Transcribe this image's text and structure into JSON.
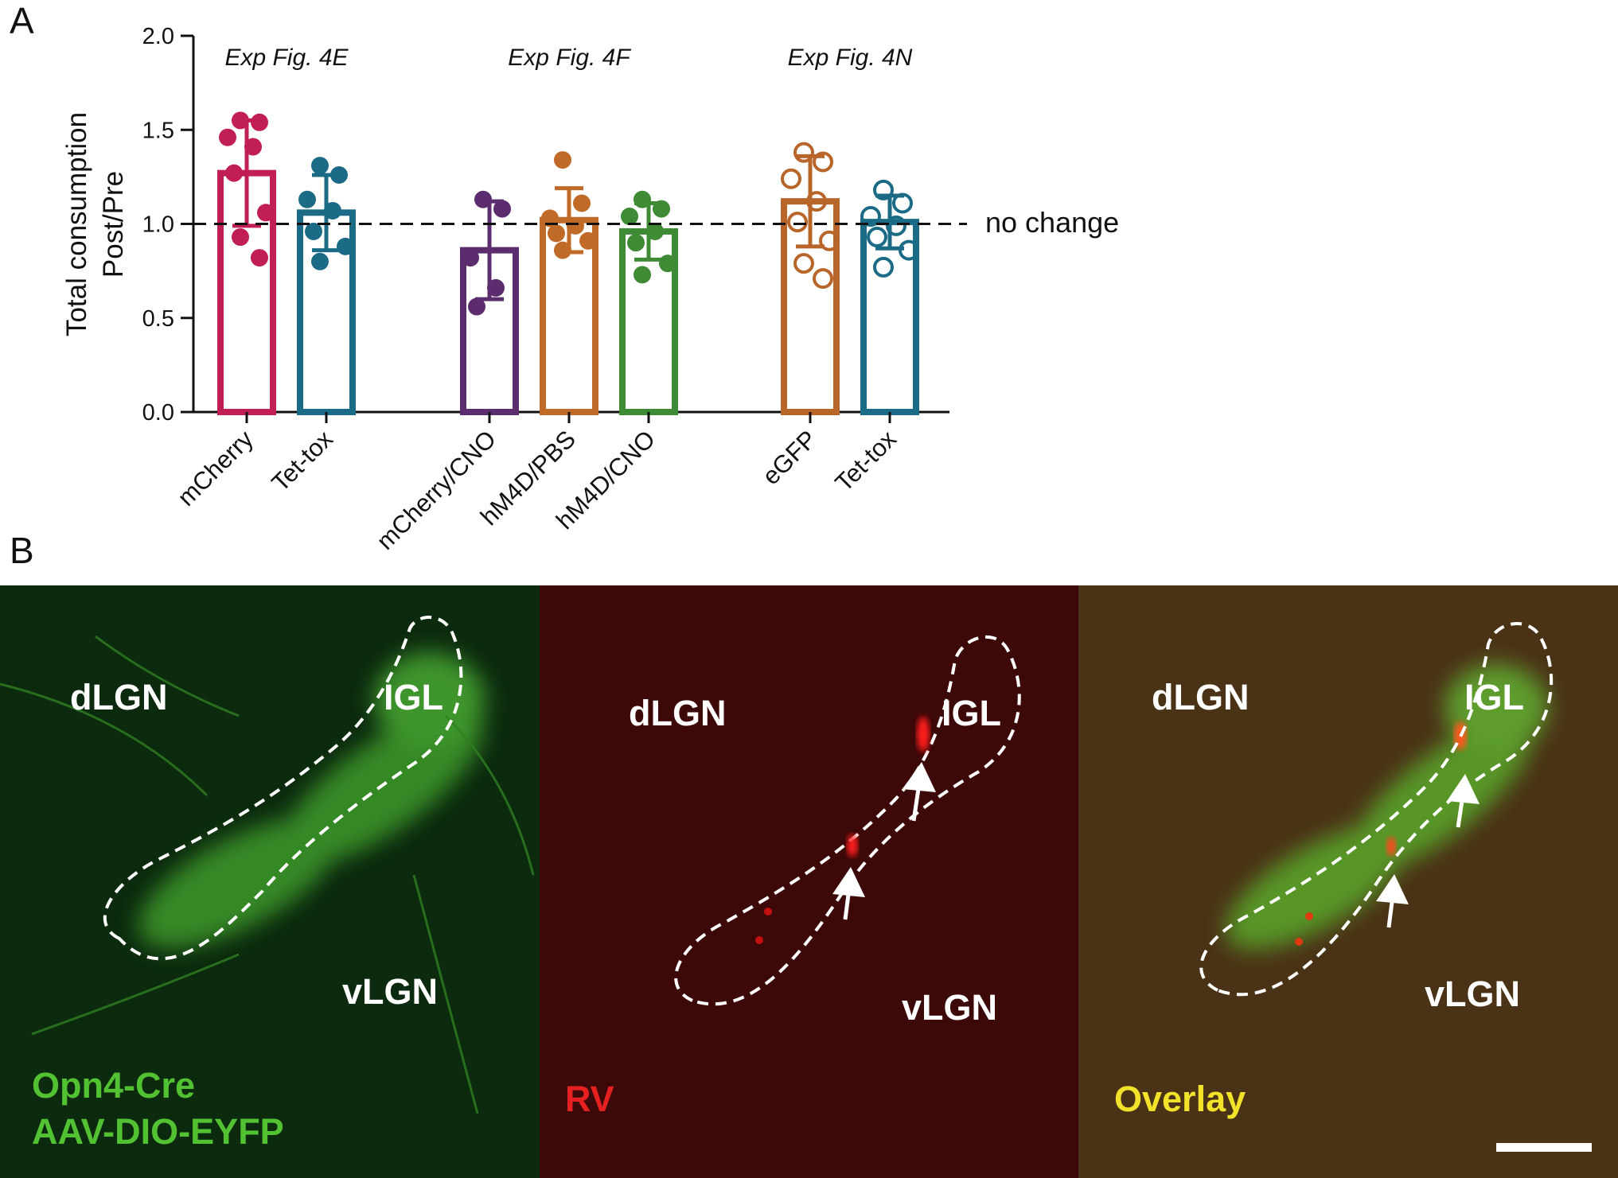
{
  "panels": {
    "a_letter": "A",
    "b_letter": "B"
  },
  "chart_data": {
    "type": "bar",
    "ylabel_line1": "Total consumption",
    "ylabel_line2": "Post/Pre",
    "ylim": [
      0,
      2.0
    ],
    "yticks": [
      "0.0",
      "0.5",
      "1.0",
      "1.5",
      "2.0"
    ],
    "reference_line": {
      "y": 1.0,
      "label": "no change",
      "style": "dashed"
    },
    "groups": [
      {
        "label": "Exp Fig. 4E",
        "bars": [
          0,
          1
        ]
      },
      {
        "label": "Exp Fig. 4F",
        "bars": [
          2,
          3,
          4
        ]
      },
      {
        "label": "Exp Fig. 4N",
        "bars": [
          5,
          6
        ]
      }
    ],
    "categories": [
      "mCherry",
      "Tet-tox",
      "mCherry/CNO",
      "hM4D/PBS",
      "hM4D/CNO",
      "eGFP",
      "Tet-tox"
    ],
    "series": [
      {
        "values": [
          1.27,
          1.06,
          0.86,
          1.02,
          0.96,
          1.12,
          1.01
        ],
        "error": [
          0.28,
          0.2,
          0.26,
          0.17,
          0.15,
          0.24,
          0.14
        ],
        "colors": [
          "#c21e56",
          "#1b6b86",
          "#5b2d6e",
          "#c06a28",
          "#3e8a35",
          "#b8652a",
          "#1b6b86"
        ],
        "marker_fill": [
          "filled",
          "filled",
          "filled",
          "filled",
          "filled",
          "open",
          "open"
        ],
        "points": [
          [
            1.55,
            1.54,
            1.46,
            1.41,
            1.27,
            1.06,
            0.93,
            0.82
          ],
          [
            1.31,
            1.26,
            1.13,
            1.07,
            0.96,
            0.88,
            0.8
          ],
          [
            1.13,
            1.08,
            0.82,
            0.66,
            0.56
          ],
          [
            1.34,
            1.11,
            1.03,
            0.99,
            0.95,
            0.91,
            0.86
          ],
          [
            1.13,
            1.08,
            1.04,
            0.96,
            0.9,
            0.79,
            0.73
          ],
          [
            1.38,
            1.33,
            1.24,
            1.12,
            1.01,
            0.91,
            0.79,
            0.71
          ],
          [
            1.18,
            1.11,
            1.04,
            0.99,
            0.93,
            0.86,
            0.77
          ]
        ]
      }
    ]
  },
  "micrographs": [
    {
      "regions": {
        "dlgn": "dLGN",
        "igl": "IGL",
        "vlgn": "vLGN"
      },
      "caption_line1": "Opn4-Cre",
      "caption_line2": "AAV-DIO-EYFP",
      "caption_color": "#52c232",
      "background": "#0c2a0e"
    },
    {
      "regions": {
        "dlgn": "dLGN",
        "igl": "IGL",
        "vlgn": "vLGN"
      },
      "caption_line1": "RV",
      "background": "#3c0808",
      "caption_color": "#e52020"
    },
    {
      "regions": {
        "dlgn": "dLGN",
        "igl": "IGL",
        "vlgn": "vLGN"
      },
      "caption_line1": "Overlay",
      "background": "#4a3216",
      "caption_color": "#f2e22a"
    }
  ]
}
